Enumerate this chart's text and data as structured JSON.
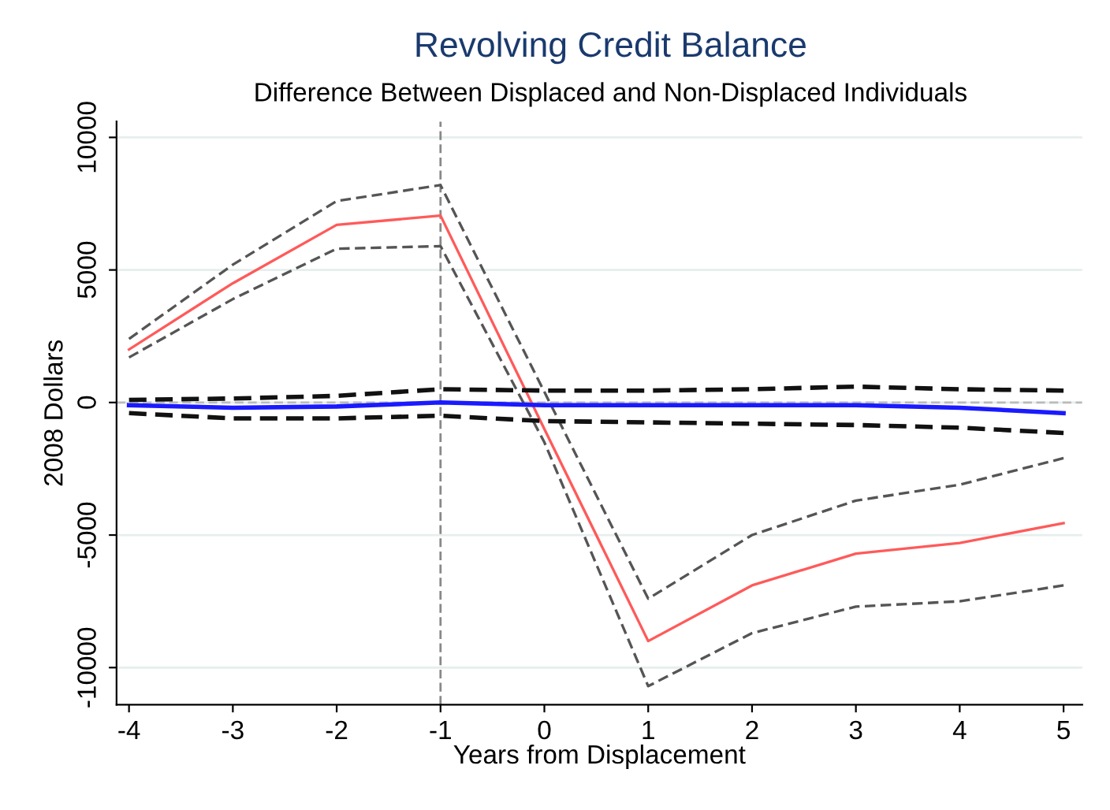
{
  "chart_data": {
    "type": "line",
    "title": "Revolving Credit Balance",
    "subtitle": "Difference Between Displaced and Non-Displaced Individuals",
    "xlabel": "Years from Displacement",
    "ylabel": "2008 Dollars",
    "x": [
      -4,
      -3,
      -2,
      -1,
      0,
      1,
      2,
      3,
      4,
      5
    ],
    "series": [
      {
        "color": "#ff5a5a",
        "line_style": "solid",
        "values": [
          2000,
          4500,
          6700,
          7050,
          -1000,
          -9000,
          -6900,
          -5700,
          -5300,
          -4550
        ]
      },
      {
        "color": "#555555",
        "line_style": "dashed",
        "values": [
          2400,
          5200,
          7600,
          8200,
          400,
          -7400,
          -5000,
          -3700,
          -3100,
          -2100
        ]
      },
      {
        "color": "#555555",
        "line_style": "dashed",
        "values": [
          1700,
          3900,
          5800,
          5900,
          -1500,
          -10700,
          -8700,
          -7700,
          -7500,
          -6900
        ]
      },
      {
        "color": "#1a1aff",
        "line_style": "solid",
        "values": [
          -100,
          -200,
          -150,
          0,
          -100,
          -100,
          -100,
          -100,
          -200,
          -400
        ]
      },
      {
        "color": "#111111",
        "line_style": "dashed",
        "values": [
          100,
          150,
          250,
          500,
          450,
          450,
          500,
          600,
          500,
          450
        ]
      },
      {
        "color": "#111111",
        "line_style": "dashed",
        "values": [
          -400,
          -600,
          -600,
          -500,
          -700,
          -750,
          -800,
          -850,
          -950,
          -1150
        ]
      }
    ],
    "xlim": [
      -4.12,
      5.18
    ],
    "ylim": [
      -11400,
      10600
    ],
    "xticks": [
      -4,
      -3,
      -2,
      -1,
      0,
      1,
      2,
      3,
      4,
      5
    ],
    "yticks": [
      -10000,
      -5000,
      0,
      5000,
      10000
    ],
    "ref_lines": [
      {
        "axis": "x",
        "value": -1,
        "color": "#888888",
        "line_style": "dashed"
      },
      {
        "axis": "y",
        "value": 0,
        "color": "#bbbbbb",
        "line_style": "dashed"
      }
    ],
    "grid": "y",
    "legend": false,
    "marker": "none"
  }
}
